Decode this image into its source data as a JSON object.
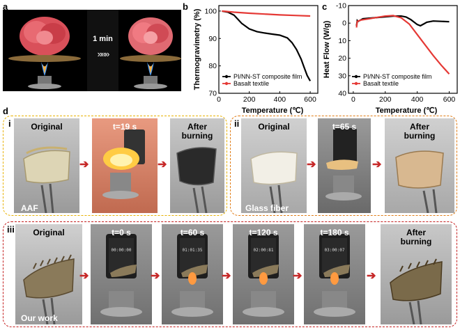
{
  "panel_labels": {
    "a": "a",
    "b": "b",
    "c": "c",
    "d": "d"
  },
  "panel_a": {
    "time_label": "1 min"
  },
  "chart_data": [
    {
      "type": "line",
      "panel": "b",
      "xlabel": "Temperature (℃)",
      "ylabel": "Thermogravimetry (%)",
      "xlim": [
        0,
        650
      ],
      "ylim": [
        70,
        102
      ],
      "xticks": [
        "0",
        "200",
        "400",
        "600"
      ],
      "yticks": [
        "70",
        "80",
        "90",
        "100"
      ],
      "legend_position": "bottom-left",
      "series": [
        {
          "name": "PI/NN-ST composite film",
          "color": "#000000",
          "x": [
            20,
            60,
            100,
            150,
            200,
            250,
            300,
            350,
            400,
            450,
            480,
            510,
            540,
            560,
            580,
            600
          ],
          "y": [
            100,
            99.6,
            98.5,
            95.5,
            93.5,
            92.5,
            92.0,
            91.6,
            91.2,
            90.2,
            88.5,
            86.0,
            82.5,
            79.5,
            76.5,
            74.5
          ]
        },
        {
          "name": "Basalt textile",
          "color": "#e53935",
          "x": [
            20,
            100,
            200,
            300,
            400,
            500,
            600
          ],
          "y": [
            100,
            99.6,
            99.2,
            98.9,
            98.6,
            98.4,
            98.2
          ]
        }
      ]
    },
    {
      "type": "line",
      "panel": "c",
      "xlabel": "Temperature (℃)",
      "ylabel": "Heat Flow (W/g)",
      "xlim": [
        -30,
        650
      ],
      "ylim": [
        -10,
        40
      ],
      "yreversed": true,
      "xticks": [
        "0",
        "200",
        "400",
        "600"
      ],
      "yticks": [
        "-10",
        "0",
        "10",
        "20",
        "30",
        "40"
      ],
      "legend_position": "bottom-left",
      "series": [
        {
          "name": "PI/NN-ST composite film",
          "color": "#000000",
          "x": [
            20,
            25,
            30,
            60,
            100,
            150,
            200,
            250,
            300,
            330,
            360,
            400,
            420,
            440,
            460,
            500,
            550,
            600
          ],
          "y": [
            1.5,
            -1.5,
            -1.0,
            -2.5,
            -2.8,
            -3.2,
            -3.6,
            -4.0,
            -4.0,
            -3.5,
            -2.0,
            0.8,
            1.5,
            0.5,
            -0.5,
            -1.2,
            -1.0,
            -0.8
          ]
        },
        {
          "name": "Basalt textile",
          "color": "#e53935",
          "x": [
            20,
            25,
            50,
            100,
            150,
            200,
            250,
            300,
            350,
            400,
            450,
            500,
            550,
            600
          ],
          "y": [
            2.5,
            -1.0,
            -1.8,
            -2.5,
            -3.3,
            -4.0,
            -4.3,
            -3.0,
            0.5,
            6.5,
            12.5,
            18.5,
            24.0,
            29.0
          ]
        }
      ]
    }
  ],
  "row_i": {
    "roman": "i",
    "label_original": "Original",
    "label_time": "t=19 s",
    "label_after": "After\nburning",
    "material": "AAF"
  },
  "row_ii": {
    "roman": "ii",
    "label_original": "Original",
    "label_time": "t=65 s",
    "label_after": "After\nburning",
    "material": "Glass fiber"
  },
  "row_iii": {
    "roman": "iii",
    "label_original": "Original",
    "times": [
      "t=0 s",
      "t=60 s",
      "t=120 s",
      "t=180 s"
    ],
    "clocks": [
      "00:00:00",
      "01:01:35",
      "02:00:81",
      "03:00:07"
    ],
    "label_after": "After\nburning",
    "material": "Our work"
  },
  "colors": {
    "box_i": "#e8b100",
    "box_ii": "#e07b14",
    "box_iii": "#c41e1e",
    "arrow": "#c62828",
    "pi_series": "#000000",
    "basalt_series": "#e53935"
  }
}
